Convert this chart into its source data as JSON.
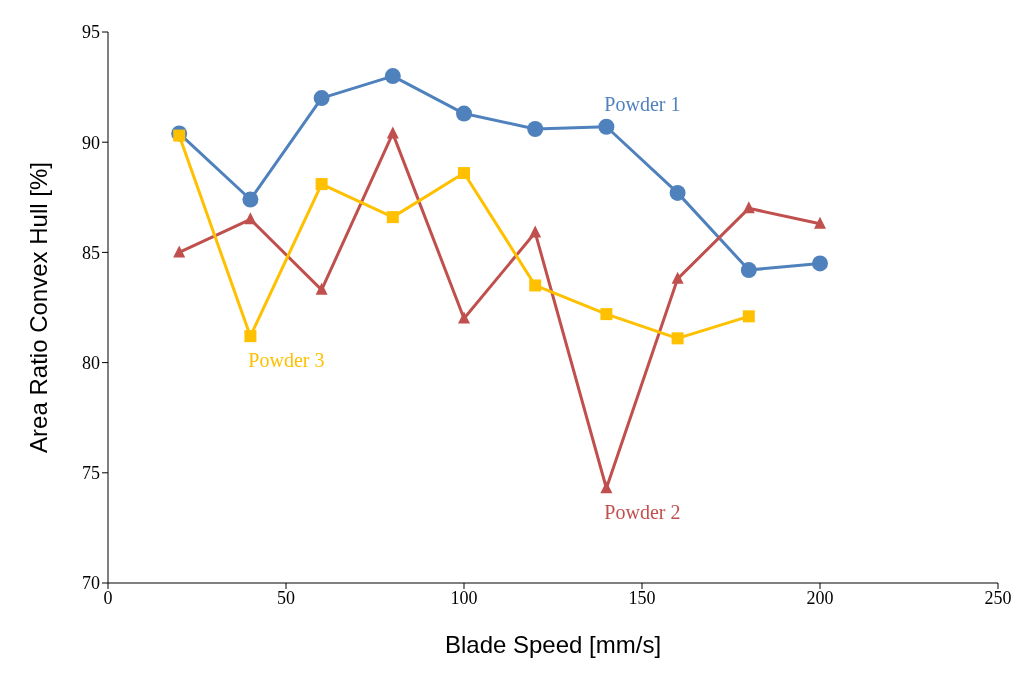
{
  "chart_data": {
    "type": "line",
    "xlabel": "Blade Speed [mm/s]",
    "ylabel": "Area Ratio Convex Hull [%]",
    "x": [
      20,
      40,
      60,
      80,
      100,
      120,
      140,
      160,
      180,
      200
    ],
    "series": [
      {
        "name": "Powder 1",
        "color": "#4f81bd",
        "marker": "circle",
        "values": [
          90.4,
          87.4,
          92.0,
          93.0,
          91.3,
          90.6,
          90.7,
          87.7,
          84.2,
          84.5
        ]
      },
      {
        "name": "Powder 2",
        "color": "#c0504d",
        "marker": "triangle",
        "values": [
          85.0,
          86.5,
          83.3,
          90.4,
          82.0,
          85.9,
          74.3,
          83.8,
          87.0,
          86.3
        ]
      },
      {
        "name": "Powder 3",
        "color": "#ffc000",
        "marker": "square",
        "values": [
          90.3,
          81.2,
          88.1,
          86.6,
          88.6,
          83.5,
          82.2,
          81.1,
          82.1,
          null
        ]
      }
    ],
    "xlim": [
      0,
      250
    ],
    "xticks": [
      0,
      50,
      100,
      150,
      200,
      250
    ],
    "ylim": [
      70,
      95
    ],
    "yticks": [
      70,
      75,
      80,
      85,
      90,
      95
    ],
    "grid": false,
    "legend": false
  }
}
